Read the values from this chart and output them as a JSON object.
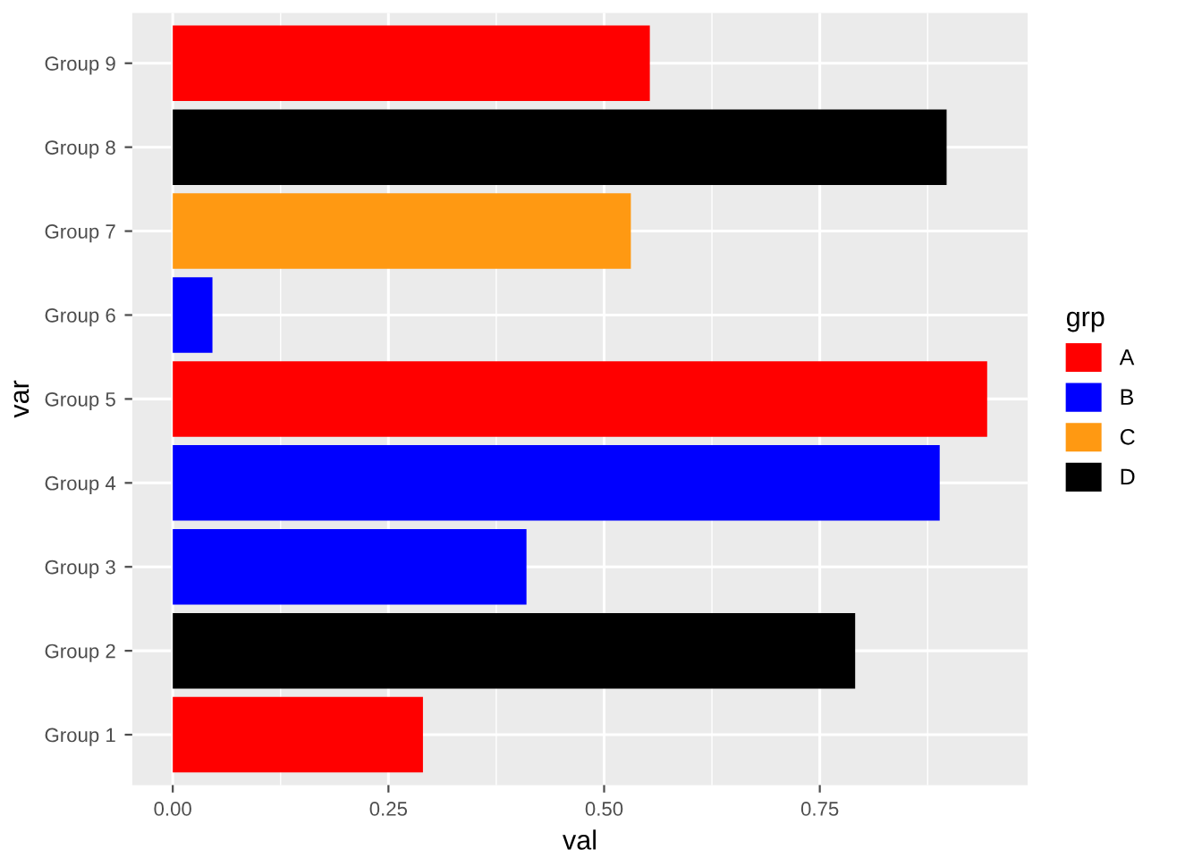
{
  "chart_data": {
    "type": "bar",
    "orientation": "horizontal",
    "categories": [
      "Group 9",
      "Group 8",
      "Group 7",
      "Group 6",
      "Group 5",
      "Group 4",
      "Group 3",
      "Group 2",
      "Group 1"
    ],
    "series": [
      {
        "name": "A",
        "color": "#ff0000",
        "values": [
          0.553,
          null,
          null,
          null,
          0.944,
          null,
          null,
          null,
          0.29
        ]
      },
      {
        "name": "B",
        "color": "#0000ff",
        "values": [
          null,
          null,
          null,
          0.046,
          null,
          0.889,
          0.41,
          null,
          null
        ]
      },
      {
        "name": "C",
        "color": "#ff9912",
        "values": [
          null,
          null,
          0.531,
          null,
          null,
          null,
          null,
          null,
          null
        ]
      },
      {
        "name": "D",
        "color": "#000000",
        "values": [
          null,
          0.897,
          null,
          null,
          null,
          null,
          null,
          0.791,
          null
        ]
      }
    ],
    "xlabel": "val",
    "ylabel": "var",
    "legend_title": "grp",
    "legend": "right",
    "grid": true,
    "xlim": [
      -0.047,
      0.991
    ],
    "xticks": [
      {
        "value": 0,
        "label": "0.00"
      },
      {
        "value": 0.25,
        "label": "0.25"
      },
      {
        "value": 0.5,
        "label": "0.50"
      },
      {
        "value": 0.75,
        "label": "0.75"
      }
    ]
  }
}
